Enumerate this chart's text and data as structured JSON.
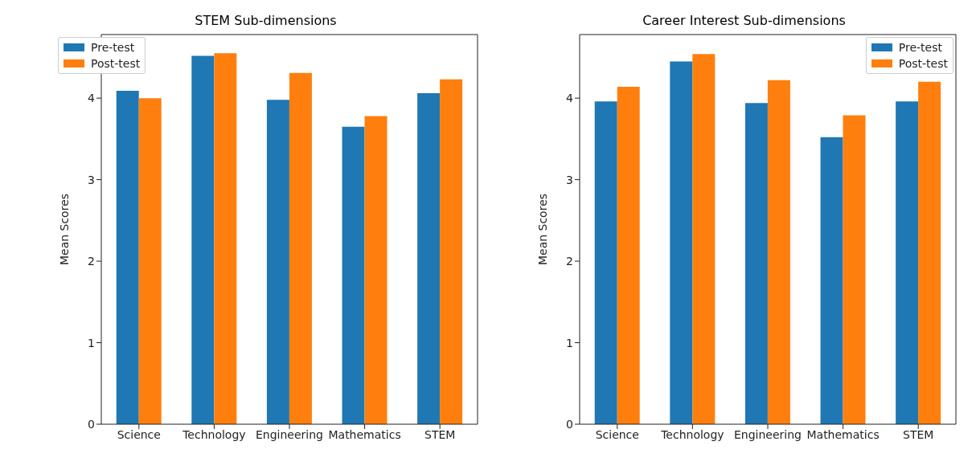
{
  "chart_data": [
    {
      "type": "bar",
      "title": "STEM Sub-dimensions",
      "ylabel": "Mean Scores",
      "categories": [
        "Science",
        "Technology",
        "Engineering",
        "Mathematics",
        "STEM"
      ],
      "series": [
        {
          "name": "Pre-test",
          "color": "#1f77b4",
          "values": [
            4.09,
            4.52,
            3.98,
            3.65,
            4.06
          ]
        },
        {
          "name": "Post-test",
          "color": "#ff7f0e",
          "values": [
            4.0,
            4.55,
            4.31,
            3.78,
            4.23
          ]
        }
      ],
      "ylim": [
        0,
        4.78
      ],
      "yticks": [
        0,
        1,
        2,
        3,
        4
      ],
      "legend": "top left"
    },
    {
      "type": "bar",
      "title": "Career Interest Sub-dimensions",
      "ylabel": "Mean Scores",
      "categories": [
        "Science",
        "Technology",
        "Engineering",
        "Mathematics",
        "STEM"
      ],
      "series": [
        {
          "name": "Pre-test",
          "color": "#1f77b4",
          "values": [
            3.96,
            4.45,
            3.94,
            3.52,
            3.96
          ]
        },
        {
          "name": "Post-test",
          "color": "#ff7f0e",
          "values": [
            4.14,
            4.54,
            4.22,
            3.79,
            4.2
          ]
        }
      ],
      "ylim": [
        0,
        4.78
      ],
      "yticks": [
        0,
        1,
        2,
        3,
        4
      ],
      "legend": "top right"
    }
  ]
}
